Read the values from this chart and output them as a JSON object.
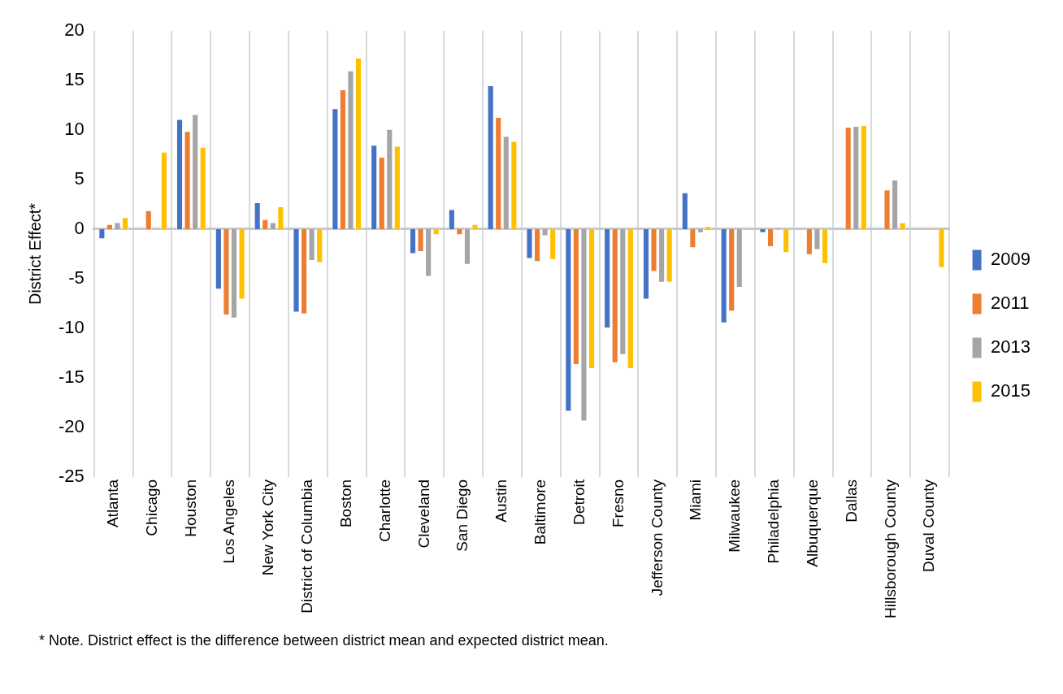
{
  "chart_data": {
    "type": "bar",
    "ylabel": "District Effect*",
    "categories": [
      "Atlanta",
      "Chicago",
      "Houston",
      "Los Angeles",
      "New York City",
      "District of Columbia",
      "Boston",
      "Charlotte",
      "Cleveland",
      "San Diego",
      "Austin",
      "Baltimore",
      "Detroit",
      "Fresno",
      "Jefferson County",
      "Miami",
      "Milwaukee",
      "Philadelphia",
      "Albuquerque",
      "Dallas",
      "Hillsborough County",
      "Duval County"
    ],
    "series": [
      {
        "name": "2009",
        "color": "#4472c4",
        "values": [
          -1.0,
          null,
          11.1,
          -6.1,
          2.7,
          -8.4,
          12.2,
          8.5,
          -2.5,
          2.0,
          14.5,
          -3.0,
          -18.4,
          -10.0,
          -7.1,
          3.7,
          -9.5,
          -0.4,
          null,
          null,
          null,
          null
        ]
      },
      {
        "name": "2011",
        "color": "#ed7d31",
        "values": [
          0.5,
          1.9,
          9.9,
          -8.7,
          1.0,
          -8.6,
          14.1,
          7.3,
          -2.3,
          -0.6,
          11.3,
          -3.3,
          -13.7,
          -13.5,
          -4.3,
          -1.9,
          -8.3,
          -1.8,
          -2.6,
          10.3,
          4.0,
          null
        ]
      },
      {
        "name": "2013",
        "color": "#a5a5a5",
        "values": [
          0.7,
          null,
          11.6,
          -9.0,
          0.7,
          -3.2,
          16.0,
          10.1,
          -4.8,
          -3.6,
          9.4,
          -0.7,
          -19.4,
          -12.7,
          -5.4,
          -0.4,
          -5.9,
          0.1,
          -2.1,
          10.4,
          5.0,
          null
        ]
      },
      {
        "name": "2015",
        "color": "#ffc000",
        "values": [
          1.2,
          7.8,
          8.3,
          -7.1,
          2.3,
          -3.4,
          17.3,
          8.4,
          -0.6,
          0.5,
          8.9,
          -3.1,
          -14.1,
          -14.1,
          -5.4,
          0.3,
          null,
          -2.4,
          -3.5,
          10.5,
          0.7,
          -3.9
        ]
      }
    ],
    "ylim": [
      -25,
      20
    ],
    "yticks": [
      -25,
      -20,
      -15,
      -10,
      -5,
      0,
      5,
      10,
      15,
      20
    ],
    "grid": "x",
    "legend": "right",
    "annotations": [
      "* Note. District effect is the difference between district mean and expected district mean."
    ]
  }
}
